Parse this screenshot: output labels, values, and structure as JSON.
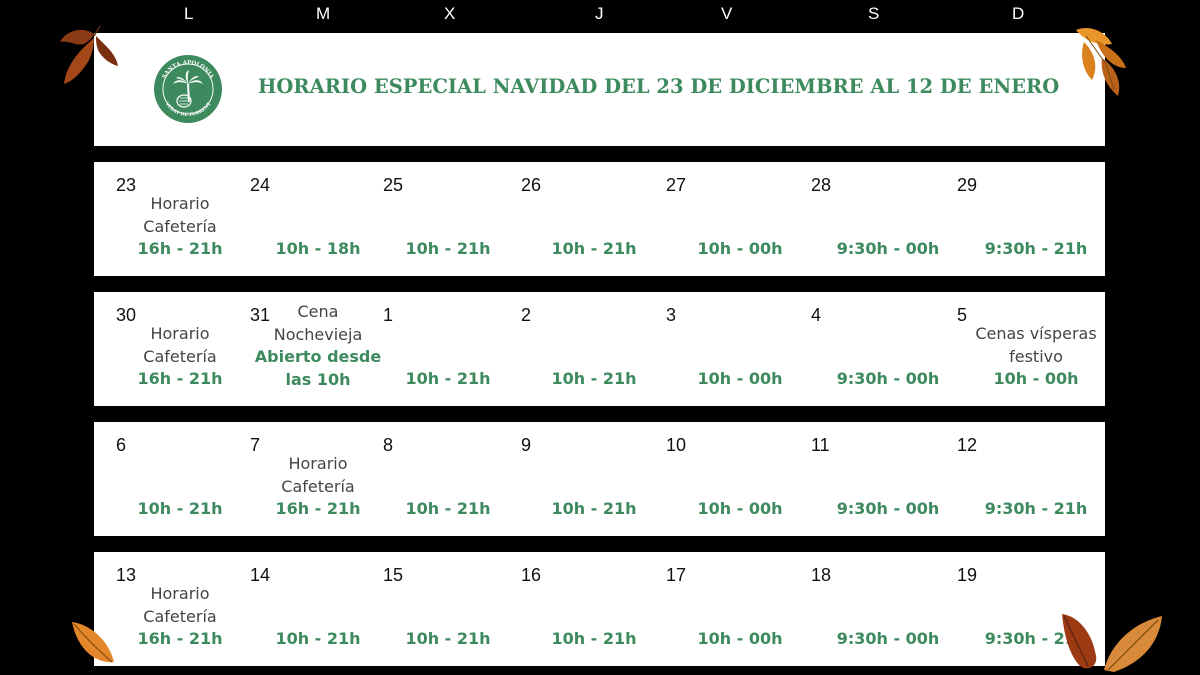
{
  "weekdays": [
    "L",
    "M",
    "X",
    "J",
    "V",
    "S",
    "D"
  ],
  "title": "HORARIO ESPECIAL NAVIDAD DEL 23 DE DICIEMBRE AL 12 DE ENERO",
  "logo_text": {
    "top": "SANTA APOLONIA",
    "bottom": "VEDAT DE TORRENT"
  },
  "colors": {
    "green": "#3d8a5e",
    "background": "#000000"
  },
  "weeks": [
    {
      "days": [
        {
          "num": "23",
          "label": "Horario\nCafetería",
          "hours": "16h - 21h"
        },
        {
          "num": "24",
          "label": "",
          "hours": "10h - 18h"
        },
        {
          "num": "25",
          "label": "",
          "hours": "10h - 21h"
        },
        {
          "num": "26",
          "label": "",
          "hours": "10h - 21h"
        },
        {
          "num": "27",
          "label": "",
          "hours": "10h - 00h"
        },
        {
          "num": "28",
          "label": "",
          "hours": "9:30h - 00h"
        },
        {
          "num": "29",
          "label": "",
          "hours": "9:30h - 21h"
        }
      ]
    },
    {
      "days": [
        {
          "num": "30",
          "label": "Horario\nCafetería",
          "hours": "16h - 21h"
        },
        {
          "num": "31",
          "label": "Cena\nNochevieja",
          "hours": "Abierto desde\nlas 10h"
        },
        {
          "num": "1",
          "label": "",
          "hours": "10h - 21h"
        },
        {
          "num": "2",
          "label": "",
          "hours": "10h - 21h"
        },
        {
          "num": "3",
          "label": "",
          "hours": "10h - 00h"
        },
        {
          "num": "4",
          "label": "",
          "hours": "9:30h - 00h"
        },
        {
          "num": "5",
          "label": "Cenas vísperas\nfestivo",
          "hours": "10h - 00h"
        }
      ]
    },
    {
      "days": [
        {
          "num": "6",
          "label": "",
          "hours": "10h - 21h"
        },
        {
          "num": "7",
          "label": "Horario\nCafetería",
          "hours": "16h - 21h"
        },
        {
          "num": "8",
          "label": "",
          "hours": "10h - 21h"
        },
        {
          "num": "9",
          "label": "",
          "hours": "10h - 21h"
        },
        {
          "num": "10",
          "label": "",
          "hours": "10h - 00h"
        },
        {
          "num": "11",
          "label": "",
          "hours": "9:30h - 00h"
        },
        {
          "num": "12",
          "label": "",
          "hours": "9:30h - 21h"
        }
      ]
    },
    {
      "days": [
        {
          "num": "13",
          "label": "Horario\nCafetería",
          "hours": "16h - 21h"
        },
        {
          "num": "14",
          "label": "",
          "hours": "10h - 21h"
        },
        {
          "num": "15",
          "label": "",
          "hours": "10h - 21h"
        },
        {
          "num": "16",
          "label": "",
          "hours": "10h - 21h"
        },
        {
          "num": "17",
          "label": "",
          "hours": "10h - 00h"
        },
        {
          "num": "18",
          "label": "",
          "hours": "9:30h - 00h"
        },
        {
          "num": "19",
          "label": "",
          "hours": "9:30h - 21h"
        }
      ]
    }
  ]
}
